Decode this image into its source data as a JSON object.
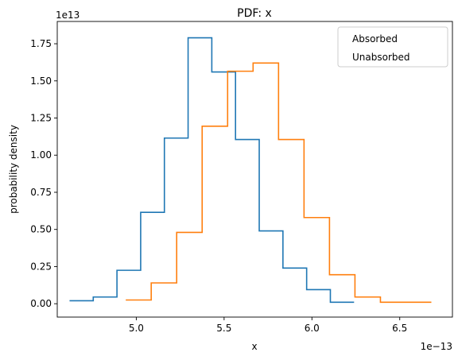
{
  "chart_data": {
    "type": "histogram-step",
    "title": "PDF: x",
    "xlabel": "x",
    "ylabel": "probability density",
    "x_offset_label": "1e−13",
    "y_offset_label": "1e13",
    "xlim": [
      4.55,
      6.8
    ],
    "ylim": [
      -0.09,
      1.9
    ],
    "x_ticks": [
      5.0,
      5.5,
      6.0,
      6.5
    ],
    "x_tick_labels": [
      "5.0",
      "5.5",
      "6.0",
      "6.5"
    ],
    "y_ticks": [
      0.0,
      0.25,
      0.5,
      0.75,
      1.0,
      1.25,
      1.5,
      1.75
    ],
    "y_tick_labels": [
      "0.00",
      "0.25",
      "0.50",
      "0.75",
      "1.00",
      "1.25",
      "1.50",
      "1.75"
    ],
    "legend_position": "top-right",
    "grid": false,
    "series": [
      {
        "name": "Absorbed",
        "color": "#1f77b4",
        "x": [
          4.62,
          4.755,
          4.89,
          5.025,
          5.16,
          5.295,
          5.43,
          5.565,
          5.7,
          5.835,
          5.97,
          6.105,
          6.24
        ],
        "y": [
          0.02,
          0.045,
          0.225,
          0.615,
          1.115,
          1.79,
          1.56,
          1.105,
          0.49,
          0.24,
          0.095,
          0.01,
          0.01
        ]
      },
      {
        "name": "Unabsorbed",
        "color": "#ff7f0e",
        "x": [
          4.94,
          5.085,
          5.23,
          5.375,
          5.52,
          5.665,
          5.81,
          5.955,
          6.1,
          6.245,
          6.39,
          6.535,
          6.68
        ],
        "y": [
          0.025,
          0.14,
          0.48,
          1.195,
          1.565,
          1.62,
          1.105,
          0.58,
          0.195,
          0.045,
          0.01,
          0.01,
          0.01
        ]
      }
    ]
  }
}
